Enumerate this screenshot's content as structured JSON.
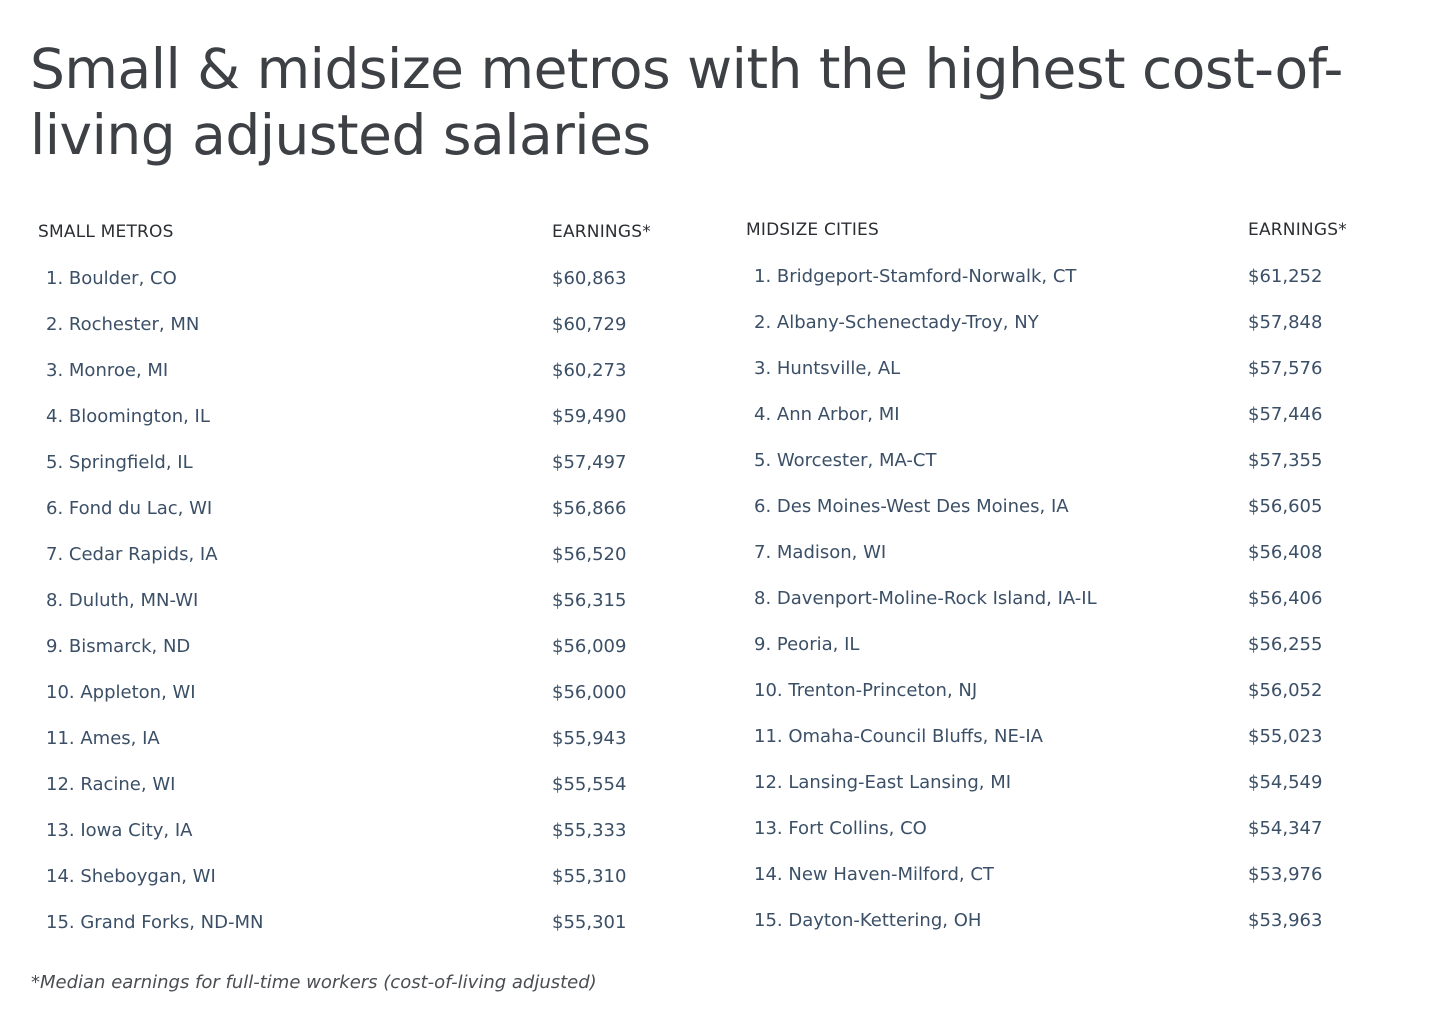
{
  "title": "Small & midsize metros with the highest cost-of-living adjusted salaries",
  "footnote": "*Median earnings for full-time workers (cost-of-living adjusted)",
  "chart_data": {
    "type": "table",
    "title": "Small & midsize metros with the highest cost-of-living adjusted salaries",
    "tables": [
      {
        "columns": [
          "SMALL METROS",
          "EARNINGS*"
        ],
        "rows": [
          [
            "1. Boulder, CO",
            "$60,863"
          ],
          [
            "2. Rochester, MN",
            "$60,729"
          ],
          [
            "3. Monroe, MI",
            "$60,273"
          ],
          [
            "4. Bloomington, IL",
            "$59,490"
          ],
          [
            "5. Springfield, IL",
            "$57,497"
          ],
          [
            "6. Fond du Lac, WI",
            "$56,866"
          ],
          [
            "7. Cedar Rapids, IA",
            "$56,520"
          ],
          [
            "8. Duluth, MN-WI",
            "$56,315"
          ],
          [
            "9. Bismarck, ND",
            "$56,009"
          ],
          [
            "10. Appleton, WI",
            "$56,000"
          ],
          [
            "11. Ames, IA",
            "$55,943"
          ],
          [
            "12. Racine, WI",
            "$55,554"
          ],
          [
            "13. Iowa City, IA",
            "$55,333"
          ],
          [
            "14. Sheboygan, WI",
            "$55,310"
          ],
          [
            "15. Grand Forks, ND-MN",
            "$55,301"
          ]
        ]
      },
      {
        "columns": [
          "MIDSIZE CITIES",
          "EARNINGS*"
        ],
        "rows": [
          [
            "1. Bridgeport-Stamford-Norwalk, CT",
            "$61,252"
          ],
          [
            "2. Albany-Schenectady-Troy, NY",
            "$57,848"
          ],
          [
            "3. Huntsville, AL",
            "$57,576"
          ],
          [
            "4. Ann Arbor, MI",
            "$57,446"
          ],
          [
            "5. Worcester, MA-CT",
            "$57,355"
          ],
          [
            "6. Des Moines-West Des Moines, IA",
            "$56,605"
          ],
          [
            "7. Madison, WI",
            "$56,408"
          ],
          [
            "8. Davenport-Moline-Rock Island, IA-IL",
            "$56,406"
          ],
          [
            "9. Peoria, IL",
            "$56,255"
          ],
          [
            "10. Trenton-Princeton, NJ",
            "$56,052"
          ],
          [
            "11. Omaha-Council Bluffs, NE-IA",
            "$55,023"
          ],
          [
            "12. Lansing-East Lansing, MI",
            "$54,549"
          ],
          [
            "13. Fort Collins, CO",
            "$54,347"
          ],
          [
            "14. New Haven-Milford, CT",
            "$53,976"
          ],
          [
            "15. Dayton-Kettering, OH",
            "$53,963"
          ]
        ]
      }
    ]
  }
}
